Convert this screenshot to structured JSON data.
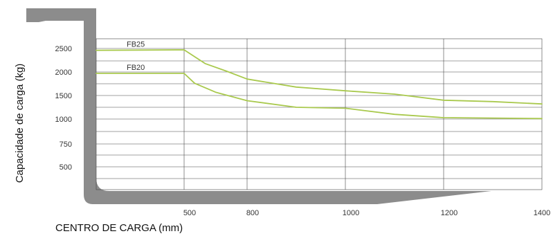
{
  "chart_data": {
    "type": "line",
    "title": "",
    "xlabel": "CENTRO DE CARGA (mm)",
    "ylabel": "Capacidade de carga (kg)",
    "x_ticks": [
      "500",
      "800",
      "1000",
      "1200",
      "1400"
    ],
    "y_ticks": [
      "2500",
      "2000",
      "1500",
      "1000",
      "750",
      "500"
    ],
    "grid": true,
    "legend": "inline-labels",
    "colors": {
      "series": "#a9c94d",
      "grid": "#444444",
      "fork": "#8c8c8c"
    },
    "series": [
      {
        "name": "FB25",
        "points": [
          {
            "x": 400,
            "y": 2460
          },
          {
            "x": 500,
            "y": 2470
          },
          {
            "x": 600,
            "y": 2180
          },
          {
            "x": 700,
            "y": 2020
          },
          {
            "x": 800,
            "y": 1850
          },
          {
            "x": 900,
            "y": 1680
          },
          {
            "x": 1000,
            "y": 1600
          },
          {
            "x": 1100,
            "y": 1530
          },
          {
            "x": 1200,
            "y": 1400
          },
          {
            "x": 1300,
            "y": 1370
          },
          {
            "x": 1400,
            "y": 1320
          }
        ]
      },
      {
        "name": "FB20",
        "points": [
          {
            "x": 400,
            "y": 1970
          },
          {
            "x": 500,
            "y": 1970
          },
          {
            "x": 550,
            "y": 1760
          },
          {
            "x": 650,
            "y": 1570
          },
          {
            "x": 800,
            "y": 1390
          },
          {
            "x": 900,
            "y": 1250
          },
          {
            "x": 1000,
            "y": 1230
          },
          {
            "x": 1100,
            "y": 1100
          },
          {
            "x": 1200,
            "y": 1030
          },
          {
            "x": 1300,
            "y": 1020
          },
          {
            "x": 1400,
            "y": 1010
          }
        ]
      }
    ]
  }
}
